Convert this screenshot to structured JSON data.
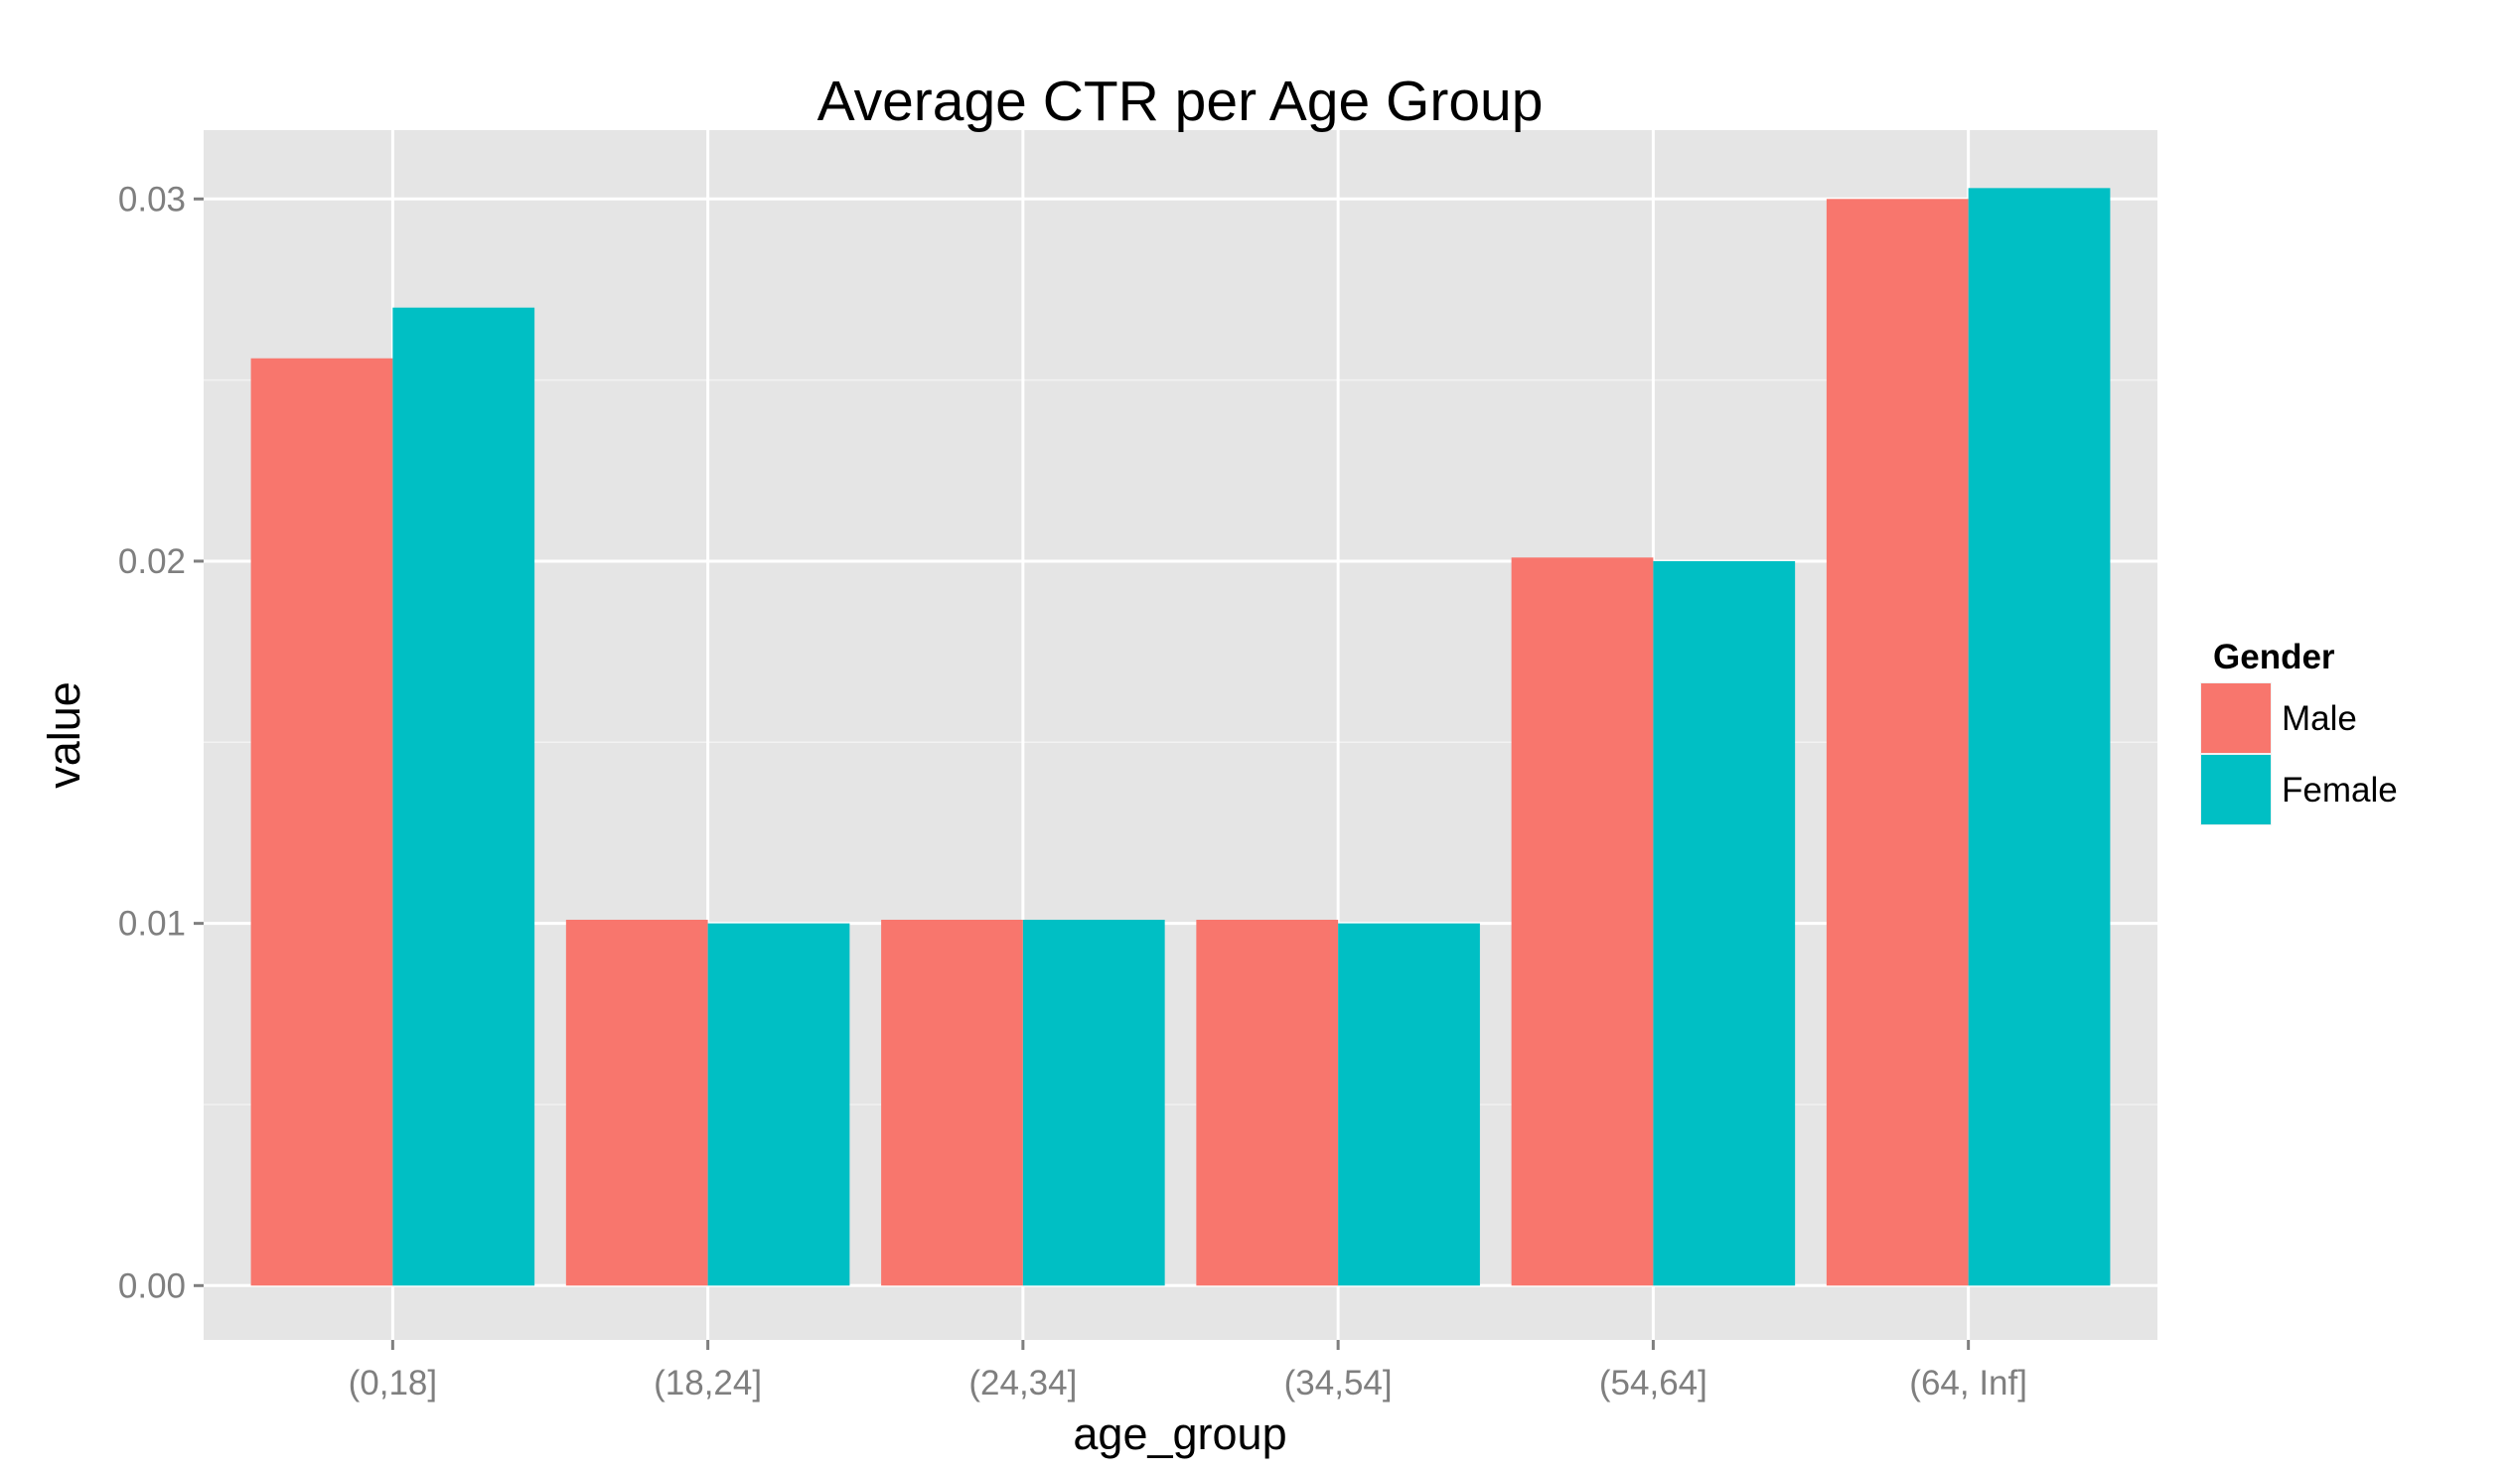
{
  "chart_data": {
    "type": "bar",
    "title": "Average CTR per Age Group",
    "xlabel": "age_group",
    "ylabel": "value",
    "categories": [
      "(0,18]",
      "(18,24]",
      "(24,34]",
      "(34,54]",
      "(54,64]",
      "(64, Inf]"
    ],
    "series": [
      {
        "name": "Male",
        "color": "#F8766D",
        "values": [
          0.0256,
          0.0101,
          0.0101,
          0.0101,
          0.0201,
          0.03
        ]
      },
      {
        "name": "Female",
        "color": "#00BFC4",
        "values": [
          0.027,
          0.01,
          0.0101,
          0.01,
          0.02,
          0.0303
        ]
      }
    ],
    "ylim": [
      -0.0015,
      0.0319
    ],
    "yticks": [
      0.0,
      0.01,
      0.02,
      0.03
    ],
    "ytick_labels": [
      "0.00",
      "0.01",
      "0.02",
      "0.03"
    ],
    "grid": true,
    "legend": {
      "title": "Gender",
      "placement": "right"
    },
    "panel_background": "#E5E5E5",
    "grid_color": "#FFFFFF"
  }
}
